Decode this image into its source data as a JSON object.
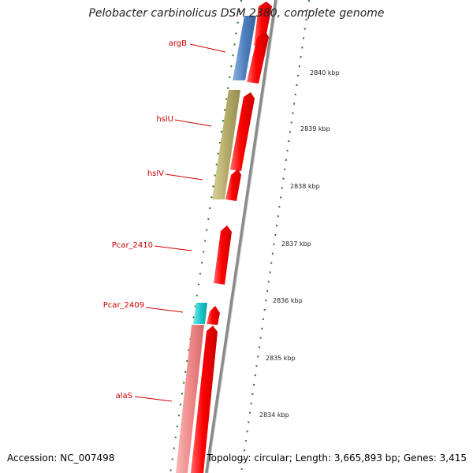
{
  "title": "Pelobacter carbinolicus DSM 2380, complete genome",
  "footer": {
    "accession": "Accession: NC_007498",
    "summary": "Topology: circular; Length: 3,665,893 bp; Genes: 3,415"
  },
  "colors": {
    "gene_label": "#cc0000",
    "cds_red": "#ff0000",
    "backbone": "#8a8a8a",
    "tick_green": "#1a7a1a",
    "blue_feature": "#4f7fc0",
    "olive_feature": "#b5ac6a",
    "cyan_feature": "#1fc8cc",
    "pink_feature": "#f08a8a"
  },
  "gene_labels": [
    "argB",
    "hslU",
    "hslV",
    "Pcar_2410",
    "Pcar_2409",
    "alaS"
  ],
  "kbp_labels": [
    "2840 kbp",
    "2839 kbp",
    "2838 kbp",
    "2837 kbp",
    "2836 kbp",
    "2835 kbp",
    "2834 kbp"
  ]
}
